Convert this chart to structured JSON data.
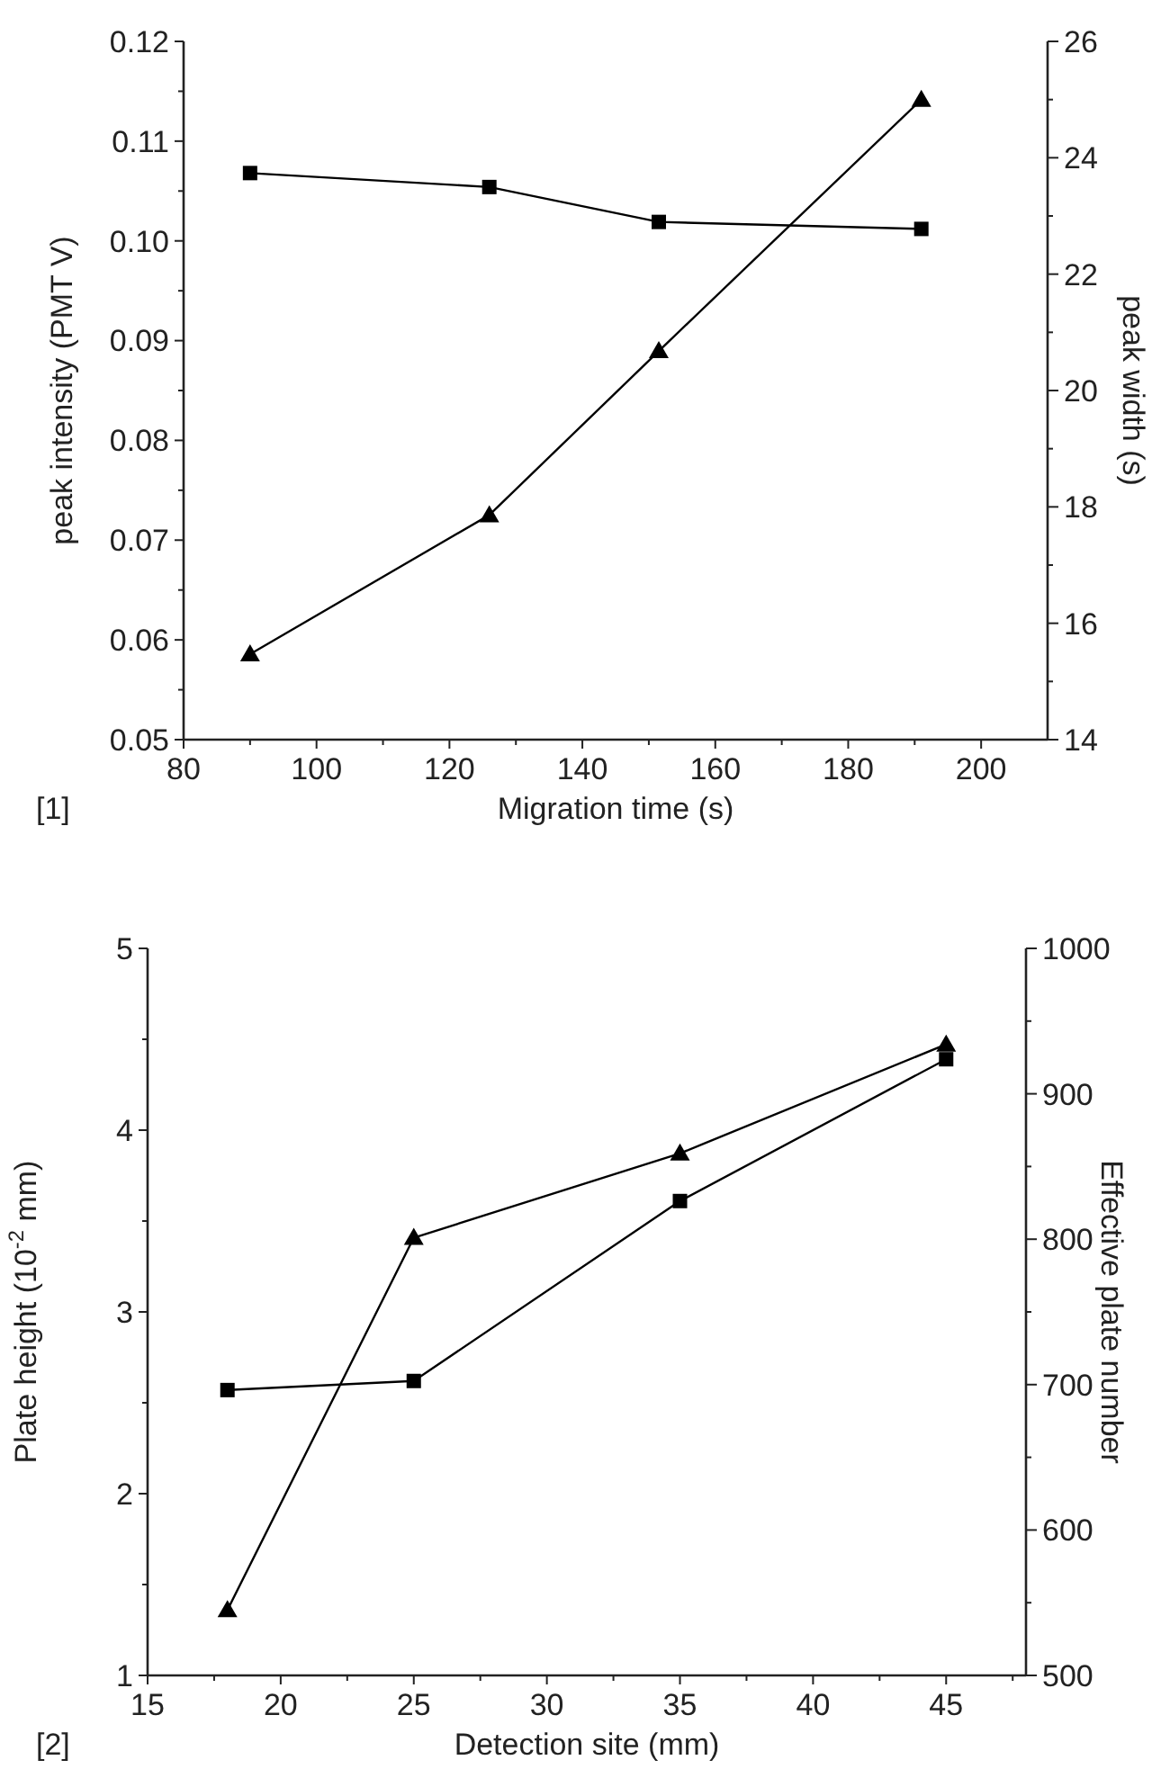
{
  "chart_data": [
    {
      "type": "line",
      "xlabel": "Migration time (s)",
      "ylabel": "peak intensity (PMT V)",
      "y2label": "peak width (s)",
      "annotations": [
        "[1]"
      ],
      "xlim": [
        80,
        210
      ],
      "xticks": [
        80,
        {
          "value": 90,
          "label": null
        },
        100,
        {
          "value": 110,
          "label": null
        },
        120,
        {
          "value": 130,
          "label": null
        },
        140,
        {
          "value": 150,
          "label": null
        },
        160,
        {
          "value": 170,
          "label": null
        },
        180,
        {
          "value": 190,
          "label": null
        },
        200
      ],
      "ylim": [
        0.05,
        0.12
      ],
      "yticks": [
        {
          "value": 0.05,
          "label": "0.05"
        },
        {
          "value": 0.055,
          "label": null
        },
        {
          "value": 0.06,
          "label": "0.06"
        },
        {
          "value": 0.065,
          "label": null
        },
        {
          "value": 0.07,
          "label": "0.07"
        },
        {
          "value": 0.075,
          "label": null
        },
        {
          "value": 0.08,
          "label": "0.08"
        },
        {
          "value": 0.085,
          "label": null
        },
        {
          "value": 0.09,
          "label": "0.09"
        },
        {
          "value": 0.095,
          "label": null
        },
        {
          "value": 0.1,
          "label": "0.10"
        },
        {
          "value": 0.105,
          "label": null
        },
        {
          "value": 0.11,
          "label": "0.11"
        },
        {
          "value": 0.115,
          "label": null
        },
        {
          "value": 0.12,
          "label": "0.12"
        }
      ],
      "y2lim": [
        14,
        26
      ],
      "y2ticks": [
        14,
        {
          "value": 15,
          "label": null
        },
        16,
        {
          "value": 17,
          "label": null
        },
        18,
        {
          "value": 19,
          "label": null
        },
        20,
        {
          "value": 21,
          "label": null
        },
        22,
        {
          "value": 23,
          "label": null
        },
        24,
        {
          "value": 25,
          "label": null
        },
        26
      ],
      "grid": false,
      "line_style": "solid",
      "series": [
        {
          "color": "#000000",
          "marker": "square",
          "x": [
            90,
            126,
            151.5,
            191
          ],
          "values": [
            0.1068,
            0.1054,
            0.1019,
            0.1012
          ]
        },
        {
          "color": "#000000",
          "marker": "triangle",
          "axis": "y2",
          "x": [
            90,
            126,
            151.5,
            191
          ],
          "values": [
            15.47,
            17.86,
            20.68,
            25.0
          ]
        }
      ]
    },
    {
      "type": "line",
      "xlabel": "Detection site (mm)",
      "ylabel": "Plate height (10$^{-2}$ mm)",
      "y2label": "Effective plate number",
      "annotations": [
        "[2]"
      ],
      "xlim": [
        15,
        48
      ],
      "xticks": [
        15,
        {
          "value": 17.5,
          "label": null
        },
        20,
        {
          "value": 22.5,
          "label": null
        },
        25,
        {
          "value": 27.5,
          "label": null
        },
        30,
        {
          "value": 32.5,
          "label": null
        },
        35,
        {
          "value": 37.5,
          "label": null
        },
        40,
        {
          "value": 42.5,
          "label": null
        },
        45,
        {
          "value": 47.5,
          "label": null
        }
      ],
      "ylim": [
        1,
        5
      ],
      "yticks": [
        1,
        {
          "value": 1.5,
          "label": null
        },
        2,
        {
          "value": 2.5,
          "label": null
        },
        3,
        {
          "value": 3.5,
          "label": null
        },
        4,
        {
          "value": 4.5,
          "label": null
        },
        5
      ],
      "y2lim": [
        500,
        1000
      ],
      "y2ticks": [
        500,
        {
          "value": 550,
          "label": null
        },
        600,
        {
          "value": 650,
          "label": null
        },
        700,
        {
          "value": 750,
          "label": null
        },
        800,
        {
          "value": 850,
          "label": null
        },
        900,
        {
          "value": 950,
          "label": null
        },
        1000
      ],
      "grid": false,
      "line_style": "solid",
      "series": [
        {
          "color": "#000000",
          "marker": "square",
          "x": [
            18,
            25,
            35,
            45
          ],
          "values": [
            2.57,
            2.62,
            3.61,
            4.39
          ]
        },
        {
          "color": "#000000",
          "marker": "triangle",
          "axis": "y2",
          "x": [
            18,
            25,
            35,
            45
          ],
          "values": [
            545,
            801,
            859,
            934
          ]
        }
      ]
    }
  ]
}
